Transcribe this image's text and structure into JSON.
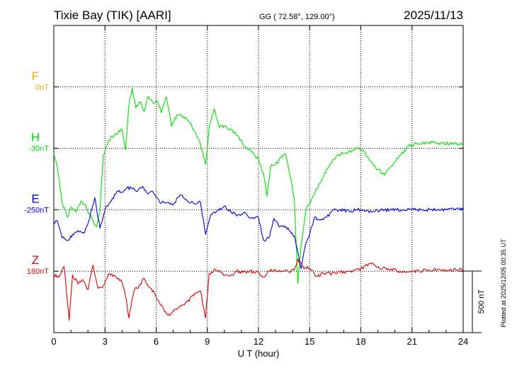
{
  "header": {
    "station": "Tixie Bay (TIK)  [AARI]",
    "coords": "GG ( 72.58°, 129.00°)",
    "date": "2025/11/13"
  },
  "footer": {
    "plotted": "Plotted at 2025/12/05 00:35 UT"
  },
  "chart_data": {
    "type": "line",
    "title": "Tixie Bay (TIK)  [AARI]",
    "xlabel": "U T (hour)",
    "ylabel": "",
    "xlim": [
      0,
      24
    ],
    "xticks": [
      0,
      3,
      6,
      9,
      12,
      15,
      18,
      21,
      24
    ],
    "xtick_labels": [
      "0",
      "3",
      "6",
      "9",
      "12",
      "15",
      "18",
      "21",
      "24"
    ],
    "grid": true,
    "scale_bar": {
      "label": "500 nT",
      "value": 500
    },
    "units_per_track_nt": 500,
    "series": [
      {
        "name": "F",
        "baseline_label": "0nT",
        "color": "#f0a800",
        "track": 1,
        "points": []
      },
      {
        "name": "H",
        "baseline_label": "-30nT",
        "color": "#00e000",
        "track": 2,
        "points": [
          [
            0,
            -40
          ],
          [
            0.2,
            -150
          ],
          [
            0.5,
            -450
          ],
          [
            0.8,
            -560
          ],
          [
            1.0,
            -480
          ],
          [
            1.3,
            -520
          ],
          [
            1.6,
            -430
          ],
          [
            1.9,
            -480
          ],
          [
            2.2,
            -560
          ],
          [
            2.5,
            -640
          ],
          [
            2.7,
            -520
          ],
          [
            2.9,
            -60
          ],
          [
            3.2,
            60
          ],
          [
            3.6,
            120
          ],
          [
            4.0,
            150
          ],
          [
            4.2,
            -10
          ],
          [
            4.4,
            350
          ],
          [
            4.6,
            490
          ],
          [
            4.8,
            330
          ],
          [
            5.1,
            380
          ],
          [
            5.3,
            300
          ],
          [
            5.5,
            420
          ],
          [
            5.8,
            370
          ],
          [
            6.1,
            380
          ],
          [
            6.3,
            290
          ],
          [
            6.6,
            420
          ],
          [
            6.9,
            180
          ],
          [
            7.2,
            270
          ],
          [
            7.6,
            260
          ],
          [
            8.0,
            200
          ],
          [
            8.3,
            130
          ],
          [
            8.6,
            30
          ],
          [
            8.9,
            -130
          ],
          [
            9.1,
            160
          ],
          [
            9.4,
            320
          ],
          [
            9.7,
            170
          ],
          [
            10.0,
            180
          ],
          [
            10.4,
            150
          ],
          [
            10.8,
            100
          ],
          [
            11.2,
            10
          ],
          [
            11.6,
            -30
          ],
          [
            12.0,
            -90
          ],
          [
            12.3,
            -210
          ],
          [
            12.5,
            -390
          ],
          [
            12.7,
            -150
          ],
          [
            13.0,
            -130
          ],
          [
            13.3,
            -80
          ],
          [
            13.6,
            -50
          ],
          [
            13.9,
            -250
          ],
          [
            14.1,
            -420
          ],
          [
            14.3,
            -1100
          ],
          [
            14.5,
            -780
          ],
          [
            14.8,
            -490
          ],
          [
            15.1,
            -420
          ],
          [
            15.4,
            -330
          ],
          [
            15.7,
            -260
          ],
          [
            16.0,
            -170
          ],
          [
            16.3,
            -110
          ],
          [
            16.7,
            -50
          ],
          [
            17.1,
            -40
          ],
          [
            17.5,
            -20
          ],
          [
            17.8,
            0
          ],
          [
            18.2,
            -30
          ],
          [
            18.6,
            -110
          ],
          [
            19.0,
            -170
          ],
          [
            19.4,
            -220
          ],
          [
            19.8,
            -140
          ],
          [
            20.3,
            -60
          ],
          [
            20.8,
            20
          ],
          [
            21.3,
            40
          ],
          [
            22.0,
            50
          ],
          [
            22.8,
            40
          ],
          [
            23.5,
            40
          ],
          [
            24.0,
            40
          ]
        ]
      },
      {
        "name": "E",
        "baseline_label": "-250nT",
        "color": "#0000e0",
        "track": 3,
        "points": [
          [
            0,
            -120
          ],
          [
            0.2,
            -90
          ],
          [
            0.5,
            -230
          ],
          [
            0.8,
            -250
          ],
          [
            1.1,
            -200
          ],
          [
            1.4,
            -170
          ],
          [
            1.8,
            -190
          ],
          [
            2.1,
            -70
          ],
          [
            2.4,
            100
          ],
          [
            2.7,
            -150
          ],
          [
            3.0,
            0
          ],
          [
            3.3,
            60
          ],
          [
            3.7,
            150
          ],
          [
            4.0,
            140
          ],
          [
            4.3,
            180
          ],
          [
            4.6,
            170
          ],
          [
            4.9,
            150
          ],
          [
            5.2,
            190
          ],
          [
            5.5,
            130
          ],
          [
            5.8,
            150
          ],
          [
            6.2,
            60
          ],
          [
            6.6,
            60
          ],
          [
            7.0,
            40
          ],
          [
            7.4,
            120
          ],
          [
            7.8,
            80
          ],
          [
            8.2,
            50
          ],
          [
            8.6,
            60
          ],
          [
            8.9,
            -200
          ],
          [
            9.2,
            -40
          ],
          [
            9.6,
            0
          ],
          [
            10.0,
            30
          ],
          [
            10.4,
            -20
          ],
          [
            10.8,
            -40
          ],
          [
            11.2,
            -20
          ],
          [
            11.6,
            -70
          ],
          [
            12.0,
            -60
          ],
          [
            12.3,
            -250
          ],
          [
            12.6,
            -230
          ],
          [
            12.9,
            -70
          ],
          [
            13.2,
            -140
          ],
          [
            13.5,
            -130
          ],
          [
            13.8,
            -170
          ],
          [
            14.1,
            -210
          ],
          [
            14.3,
            -340
          ],
          [
            14.5,
            -480
          ],
          [
            14.7,
            -320
          ],
          [
            15.0,
            -200
          ],
          [
            15.3,
            -60
          ],
          [
            15.6,
            -80
          ],
          [
            16.0,
            -60
          ],
          [
            16.4,
            0
          ],
          [
            16.8,
            0
          ],
          [
            17.3,
            -10
          ],
          [
            17.8,
            0
          ],
          [
            18.3,
            -10
          ],
          [
            19.0,
            -10
          ],
          [
            19.7,
            0
          ],
          [
            20.5,
            0
          ],
          [
            21.5,
            0
          ],
          [
            22.5,
            0
          ],
          [
            23.5,
            0
          ],
          [
            24.0,
            0
          ]
        ]
      },
      {
        "name": "Z",
        "baseline_label": "180nT",
        "color": "#e00000",
        "track": 4,
        "points": [
          [
            0,
            -30
          ],
          [
            0.3,
            -50
          ],
          [
            0.6,
            40
          ],
          [
            0.8,
            -250
          ],
          [
            0.9,
            -400
          ],
          [
            1.1,
            -30
          ],
          [
            1.4,
            -100
          ],
          [
            1.7,
            -70
          ],
          [
            2.0,
            -150
          ],
          [
            2.3,
            50
          ],
          [
            2.6,
            -140
          ],
          [
            2.9,
            -120
          ],
          [
            3.2,
            -20
          ],
          [
            3.6,
            -40
          ],
          [
            4.0,
            -90
          ],
          [
            4.2,
            -200
          ],
          [
            4.4,
            -380
          ],
          [
            4.7,
            -160
          ],
          [
            5.0,
            -120
          ],
          [
            5.3,
            -60
          ],
          [
            5.6,
            -130
          ],
          [
            5.9,
            -180
          ],
          [
            6.2,
            -260
          ],
          [
            6.5,
            -330
          ],
          [
            6.8,
            -360
          ],
          [
            7.1,
            -310
          ],
          [
            7.4,
            -280
          ],
          [
            7.8,
            -250
          ],
          [
            8.2,
            -200
          ],
          [
            8.6,
            -160
          ],
          [
            8.9,
            -380
          ],
          [
            9.1,
            -20
          ],
          [
            9.5,
            10
          ],
          [
            9.9,
            -20
          ],
          [
            10.3,
            -40
          ],
          [
            10.7,
            0
          ],
          [
            11.1,
            -10
          ],
          [
            11.5,
            0
          ],
          [
            12.0,
            -10
          ],
          [
            12.3,
            -50
          ],
          [
            12.6,
            0
          ],
          [
            13.0,
            10
          ],
          [
            13.4,
            0
          ],
          [
            13.8,
            -10
          ],
          [
            14.1,
            10
          ],
          [
            14.3,
            100
          ],
          [
            14.6,
            40
          ],
          [
            15.0,
            20
          ],
          [
            15.4,
            -40
          ],
          [
            15.8,
            -20
          ],
          [
            16.3,
            -20
          ],
          [
            16.8,
            -10
          ],
          [
            17.4,
            0
          ],
          [
            18.0,
            20
          ],
          [
            18.6,
            60
          ],
          [
            19.1,
            20
          ],
          [
            19.6,
            20
          ],
          [
            20.3,
            0
          ],
          [
            21.0,
            0
          ],
          [
            22.0,
            10
          ],
          [
            23.0,
            10
          ],
          [
            24.0,
            10
          ]
        ]
      }
    ]
  }
}
